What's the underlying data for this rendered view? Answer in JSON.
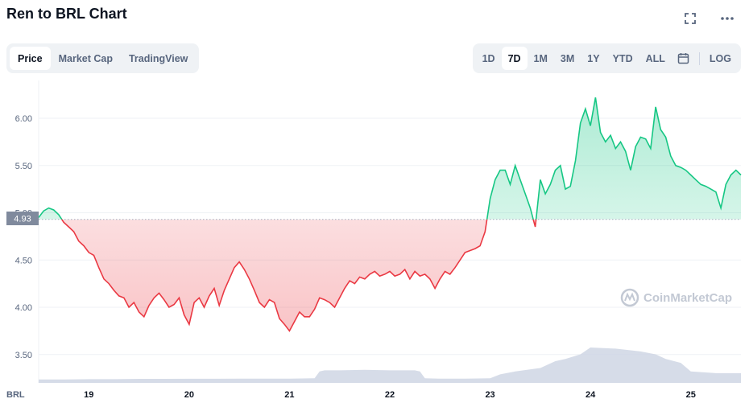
{
  "header": {
    "title": "Ren to BRL Chart"
  },
  "tabs": [
    "Price",
    "Market Cap",
    "TradingView"
  ],
  "active_tab": "Price",
  "ranges": [
    "1D",
    "7D",
    "1M",
    "3M",
    "1Y",
    "YTD",
    "ALL"
  ],
  "active_range": "7D",
  "log_label": "LOG",
  "currency_label": "BRL",
  "watermark": "CoinMarketCap",
  "current_price_label": "4.93",
  "colors": {
    "up": "#16c784",
    "down": "#ea3943",
    "volume": "#cfd6e4"
  },
  "chart_data": {
    "type": "line",
    "xlabel": "",
    "ylabel": "",
    "ylim": [
      3.2,
      6.4
    ],
    "reference_price": 4.93,
    "y_ticks": [
      3.5,
      4.0,
      4.5,
      5.0,
      5.5,
      6.0
    ],
    "y_tick_labels": [
      "3.50",
      "4.00",
      "4.50",
      "5.00",
      "5.50",
      "6.00"
    ],
    "x_ticks": [
      19,
      20,
      21,
      22,
      23,
      24,
      25
    ],
    "x_tick_labels": [
      "19",
      "20",
      "21",
      "22",
      "23",
      "24",
      "25"
    ],
    "x_range": [
      18.5,
      25.5
    ],
    "price": {
      "x": [
        18.5,
        18.55,
        18.6,
        18.65,
        18.7,
        18.75,
        18.8,
        18.85,
        18.9,
        18.95,
        19.0,
        19.05,
        19.1,
        19.15,
        19.2,
        19.25,
        19.3,
        19.35,
        19.4,
        19.45,
        19.5,
        19.55,
        19.6,
        19.65,
        19.7,
        19.75,
        19.8,
        19.85,
        19.9,
        19.95,
        20.0,
        20.05,
        20.1,
        20.15,
        20.2,
        20.25,
        20.3,
        20.35,
        20.4,
        20.45,
        20.5,
        20.55,
        20.6,
        20.65,
        20.7,
        20.75,
        20.8,
        20.85,
        20.9,
        20.95,
        21.0,
        21.05,
        21.1,
        21.15,
        21.2,
        21.25,
        21.3,
        21.35,
        21.4,
        21.45,
        21.5,
        21.55,
        21.6,
        21.65,
        21.7,
        21.75,
        21.8,
        21.85,
        21.9,
        21.95,
        22.0,
        22.05,
        22.1,
        22.15,
        22.2,
        22.25,
        22.3,
        22.35,
        22.4,
        22.45,
        22.5,
        22.55,
        22.6,
        22.65,
        22.7,
        22.75,
        22.8,
        22.85,
        22.9,
        22.95,
        23.0,
        23.05,
        23.1,
        23.15,
        23.2,
        23.25,
        23.3,
        23.35,
        23.4,
        23.45,
        23.5,
        23.55,
        23.6,
        23.65,
        23.7,
        23.75,
        23.8,
        23.85,
        23.9,
        23.95,
        24.0,
        24.05,
        24.1,
        24.15,
        24.2,
        24.25,
        24.3,
        24.35,
        24.4,
        24.45,
        24.5,
        24.55,
        24.6,
        24.65,
        24.7,
        24.75,
        24.8,
        24.85,
        24.9,
        24.95,
        25.0,
        25.05,
        25.1,
        25.15,
        25.2,
        25.25,
        25.3,
        25.35,
        25.4,
        25.45,
        25.5
      ],
      "values": [
        4.95,
        5.02,
        5.05,
        5.03,
        4.98,
        4.9,
        4.85,
        4.8,
        4.7,
        4.65,
        4.58,
        4.55,
        4.42,
        4.3,
        4.25,
        4.18,
        4.12,
        4.1,
        4.0,
        4.05,
        3.95,
        3.9,
        4.02,
        4.1,
        4.15,
        4.08,
        4.0,
        4.03,
        4.1,
        3.92,
        3.82,
        4.05,
        4.1,
        4.0,
        4.12,
        4.2,
        4.02,
        4.18,
        4.3,
        4.42,
        4.48,
        4.4,
        4.3,
        4.18,
        4.05,
        4.0,
        4.08,
        4.05,
        3.88,
        3.82,
        3.75,
        3.85,
        3.95,
        3.9,
        3.9,
        3.98,
        4.1,
        4.08,
        4.05,
        4.0,
        4.1,
        4.2,
        4.28,
        4.25,
        4.32,
        4.3,
        4.35,
        4.38,
        4.33,
        4.35,
        4.38,
        4.33,
        4.35,
        4.4,
        4.3,
        4.38,
        4.33,
        4.35,
        4.3,
        4.2,
        4.3,
        4.38,
        4.35,
        4.42,
        4.5,
        4.58,
        4.6,
        4.62,
        4.65,
        4.8,
        5.15,
        5.35,
        5.45,
        5.45,
        5.3,
        5.5,
        5.35,
        5.2,
        5.05,
        4.85,
        5.35,
        5.2,
        5.3,
        5.45,
        5.5,
        5.25,
        5.28,
        5.55,
        5.95,
        6.1,
        5.92,
        6.22,
        5.85,
        5.75,
        5.82,
        5.68,
        5.75,
        5.65,
        5.45,
        5.7,
        5.8,
        5.78,
        5.68,
        6.12,
        5.88,
        5.8,
        5.6,
        5.5,
        5.48,
        5.45,
        5.4,
        5.35,
        5.3,
        5.28,
        5.25,
        5.22,
        5.05,
        5.3,
        5.4,
        5.45,
        5.4
      ]
    },
    "volume": {
      "x": [
        18.5,
        18.75,
        19.0,
        19.25,
        19.5,
        19.75,
        20.0,
        20.25,
        20.5,
        20.75,
        21.0,
        21.25,
        21.3,
        21.35,
        21.5,
        21.75,
        22.0,
        22.25,
        22.3,
        22.35,
        22.5,
        22.75,
        23.0,
        23.1,
        23.25,
        23.5,
        23.65,
        23.75,
        23.9,
        24.0,
        24.25,
        24.5,
        24.65,
        24.75,
        24.9,
        25.0,
        25.25,
        25.5
      ],
      "values": [
        0.06,
        0.06,
        0.065,
        0.065,
        0.07,
        0.07,
        0.072,
        0.072,
        0.074,
        0.074,
        0.075,
        0.08,
        0.2,
        0.22,
        0.22,
        0.23,
        0.22,
        0.22,
        0.2,
        0.08,
        0.075,
        0.075,
        0.08,
        0.15,
        0.2,
        0.26,
        0.38,
        0.42,
        0.5,
        0.62,
        0.6,
        0.55,
        0.5,
        0.42,
        0.35,
        0.2,
        0.17,
        0.17
      ]
    }
  }
}
